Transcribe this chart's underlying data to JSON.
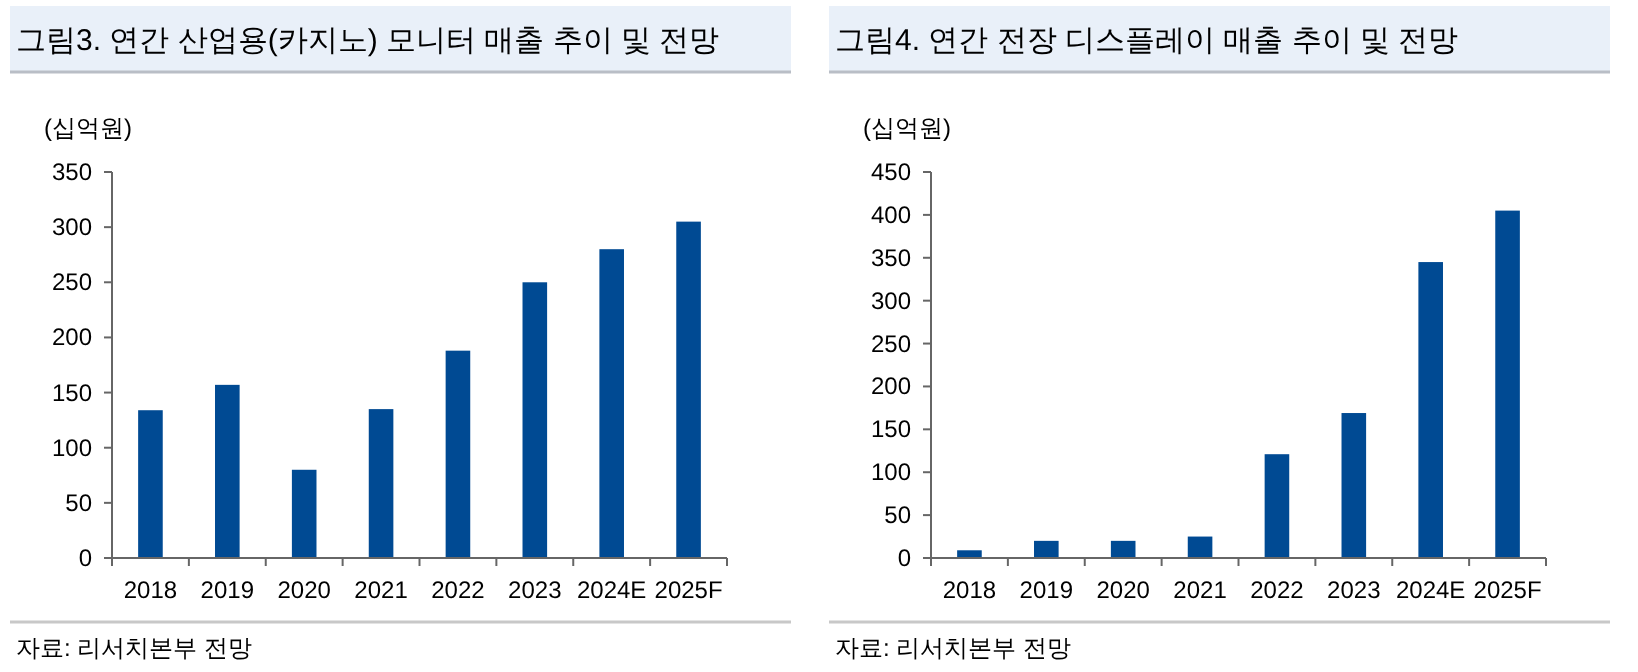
{
  "chart_data": [
    {
      "type": "bar",
      "title": "그림3. 연간 산업용(카지노) 모니터 매출 추이 및 전망",
      "ylabel": "(십억원)",
      "categories": [
        "2018",
        "2019",
        "2020",
        "2021",
        "2022",
        "2023",
        "2024E",
        "2025F"
      ],
      "series": [
        {
          "color": "#004a93",
          "values": [
            134,
            157,
            80,
            135,
            188,
            250,
            280,
            305
          ]
        }
      ],
      "ylim": [
        0,
        350
      ],
      "yticks": [
        0,
        50,
        100,
        150,
        200,
        250,
        300,
        350
      ],
      "annotations": [
        "자료: 리서치본부 전망"
      ]
    },
    {
      "type": "bar",
      "title": "그림4. 연간 전장 디스플레이 매출 추이 및 전망",
      "ylabel": "(십억원)",
      "categories": [
        "2018",
        "2019",
        "2020",
        "2021",
        "2022",
        "2023",
        "2024E",
        "2025F"
      ],
      "series": [
        {
          "color": "#004a93",
          "values": [
            9,
            20,
            20,
            25,
            121,
            169,
            345,
            405
          ]
        }
      ],
      "ylim": [
        0,
        450
      ],
      "yticks": [
        0,
        50,
        100,
        150,
        200,
        250,
        300,
        350,
        400,
        450
      ],
      "annotations": [
        "자료: 리서치본부 전망"
      ]
    }
  ]
}
